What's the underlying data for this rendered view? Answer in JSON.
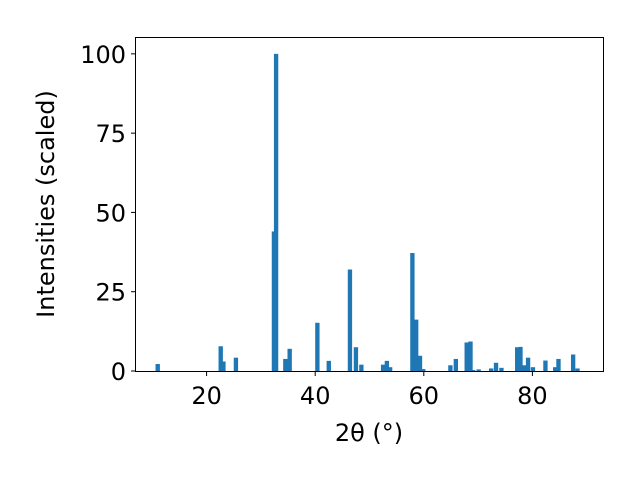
{
  "chart_data": {
    "type": "bar",
    "xlabel": "2θ (°)",
    "ylabel": "Intensities (scaled)",
    "xlim": [
      7,
      93
    ],
    "ylim": [
      0,
      105
    ],
    "x_ticks": [
      20,
      40,
      60,
      80
    ],
    "y_ticks": [
      0,
      25,
      50,
      75,
      100
    ],
    "grid": false,
    "bar_width": 0.8,
    "bar_color": "#1f77b4",
    "x": [
      11,
      22.6,
      23.1,
      25.4,
      32.4,
      32.8,
      34.5,
      35.3,
      40.4,
      42.5,
      46.4,
      47.5,
      48.5,
      52.5,
      53.2,
      53.8,
      57.9,
      58.6,
      59.3,
      59.9,
      64.9,
      65.9,
      67.9,
      68.6,
      69.1,
      70.1,
      72.4,
      73.3,
      74.3,
      77.2,
      77.8,
      78.5,
      79.2,
      80.1,
      82.4,
      84.2,
      84.8,
      87.5,
      88.3
    ],
    "values": [
      2.2,
      7.8,
      3.0,
      4.2,
      44.0,
      100.0,
      3.8,
      7.0,
      15.2,
      3.2,
      32.0,
      7.5,
      2.0,
      2.0,
      3.2,
      1.2,
      37.2,
      16.2,
      4.8,
      0.6,
      1.8,
      3.8,
      9.0,
      9.3,
      0.3,
      0.5,
      0.8,
      2.6,
      1.0,
      7.5,
      7.6,
      1.8,
      4.2,
      1.2,
      3.3,
      1.2,
      3.8,
      5.2,
      0.8
    ]
  }
}
